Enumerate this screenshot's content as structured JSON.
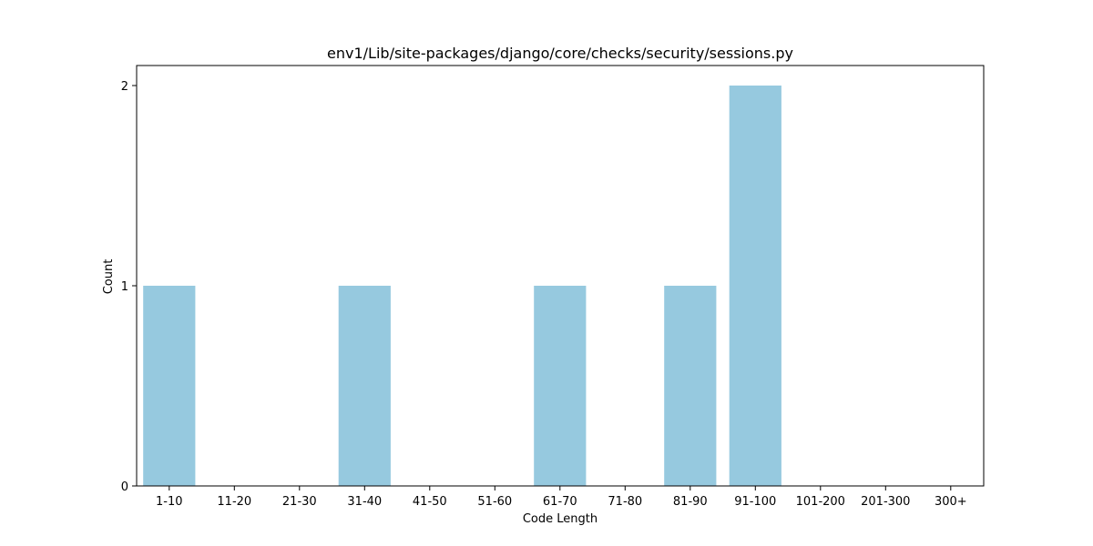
{
  "chart_data": {
    "type": "bar",
    "title": "env1/Lib/site-packages/django/core/checks/security/sessions.py",
    "xlabel": "Code Length",
    "ylabel": "Count",
    "categories": [
      "1-10",
      "11-20",
      "21-30",
      "31-40",
      "41-50",
      "51-60",
      "61-70",
      "71-80",
      "81-90",
      "91-100",
      "101-200",
      "201-300",
      "300+"
    ],
    "values": [
      1,
      0,
      0,
      1,
      0,
      0,
      1,
      0,
      1,
      2,
      0,
      0,
      0
    ],
    "yticks": [
      "0",
      "1",
      "2"
    ],
    "ylim": [
      0,
      2.1
    ],
    "grid": false,
    "bar_color": "#96c9df"
  }
}
